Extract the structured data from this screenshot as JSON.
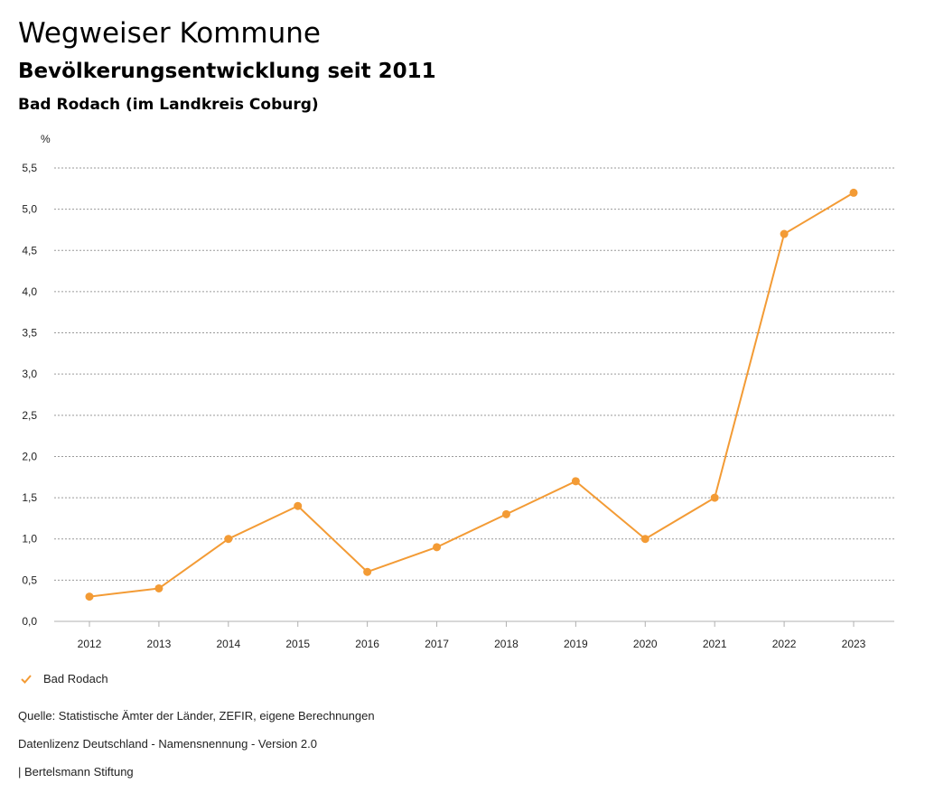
{
  "header": {
    "title": "Wegweiser Kommune",
    "subtitle": "Bevölkerungsentwicklung seit 2011",
    "region": "Bad Rodach (im Landkreis Coburg)"
  },
  "chart_data": {
    "type": "line",
    "title": "Bevölkerungsentwicklung seit 2011",
    "xlabel": "",
    "ylabel": "%",
    "x": [
      "2012",
      "2013",
      "2014",
      "2015",
      "2016",
      "2017",
      "2018",
      "2019",
      "2020",
      "2021",
      "2022",
      "2023"
    ],
    "series": [
      {
        "name": "Bad Rodach",
        "color": "#f39b35",
        "values": [
          0.3,
          0.4,
          1.0,
          1.4,
          0.6,
          0.9,
          1.3,
          1.7,
          1.0,
          1.5,
          4.7,
          5.2
        ]
      }
    ],
    "ylim": [
      0,
      5.5
    ],
    "yticks": [
      0,
      0.5,
      1.0,
      1.5,
      2.0,
      2.5,
      3.0,
      3.5,
      4.0,
      4.5,
      5.0,
      5.5
    ],
    "ytick_labels": [
      "0,0",
      "0,5",
      "1,0",
      "1,5",
      "2,0",
      "2,5",
      "3,0",
      "3,5",
      "4,0",
      "4,5",
      "5,0",
      "5,5"
    ],
    "grid": true,
    "legend": "bottom-left"
  },
  "legend": {
    "label": "Bad Rodach",
    "icon": "check-icon"
  },
  "footer": {
    "source": "Quelle: Statistische Ämter der Länder, ZEFIR, eigene Berechnungen",
    "license": "Datenlizenz Deutschland - Namensnennung - Version 2.0",
    "publisher": "| Bertelsmann Stiftung"
  }
}
